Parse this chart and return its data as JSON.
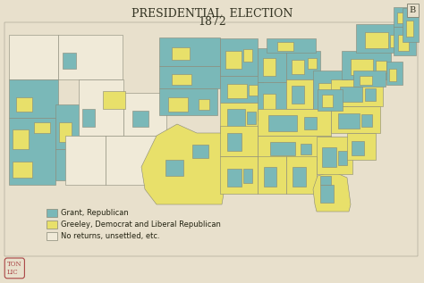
{
  "title_line1": "PRESIDENTIAL  ELECTION",
  "title_line2": "1872",
  "background_color": "#e8e0cc",
  "map_background": "#ddd5bb",
  "grant_color": "#7ab8b8",
  "greeley_color": "#e8e06a",
  "no_returns_color": "#f0ead8",
  "border_color": "#888877",
  "legend_items": [
    {
      "color": "#7ab8b8",
      "label": "Grant, Republican"
    },
    {
      "color": "#e8e06a",
      "label": "Greeley, Democrat and Liberal Republican"
    },
    {
      "color": "#f0ead8",
      "label": "No returns, unsettled, etc."
    }
  ],
  "title_fontsize": 9,
  "legend_fontsize": 6,
  "corner_label": "B",
  "stamp_text": "TON\nLIC"
}
